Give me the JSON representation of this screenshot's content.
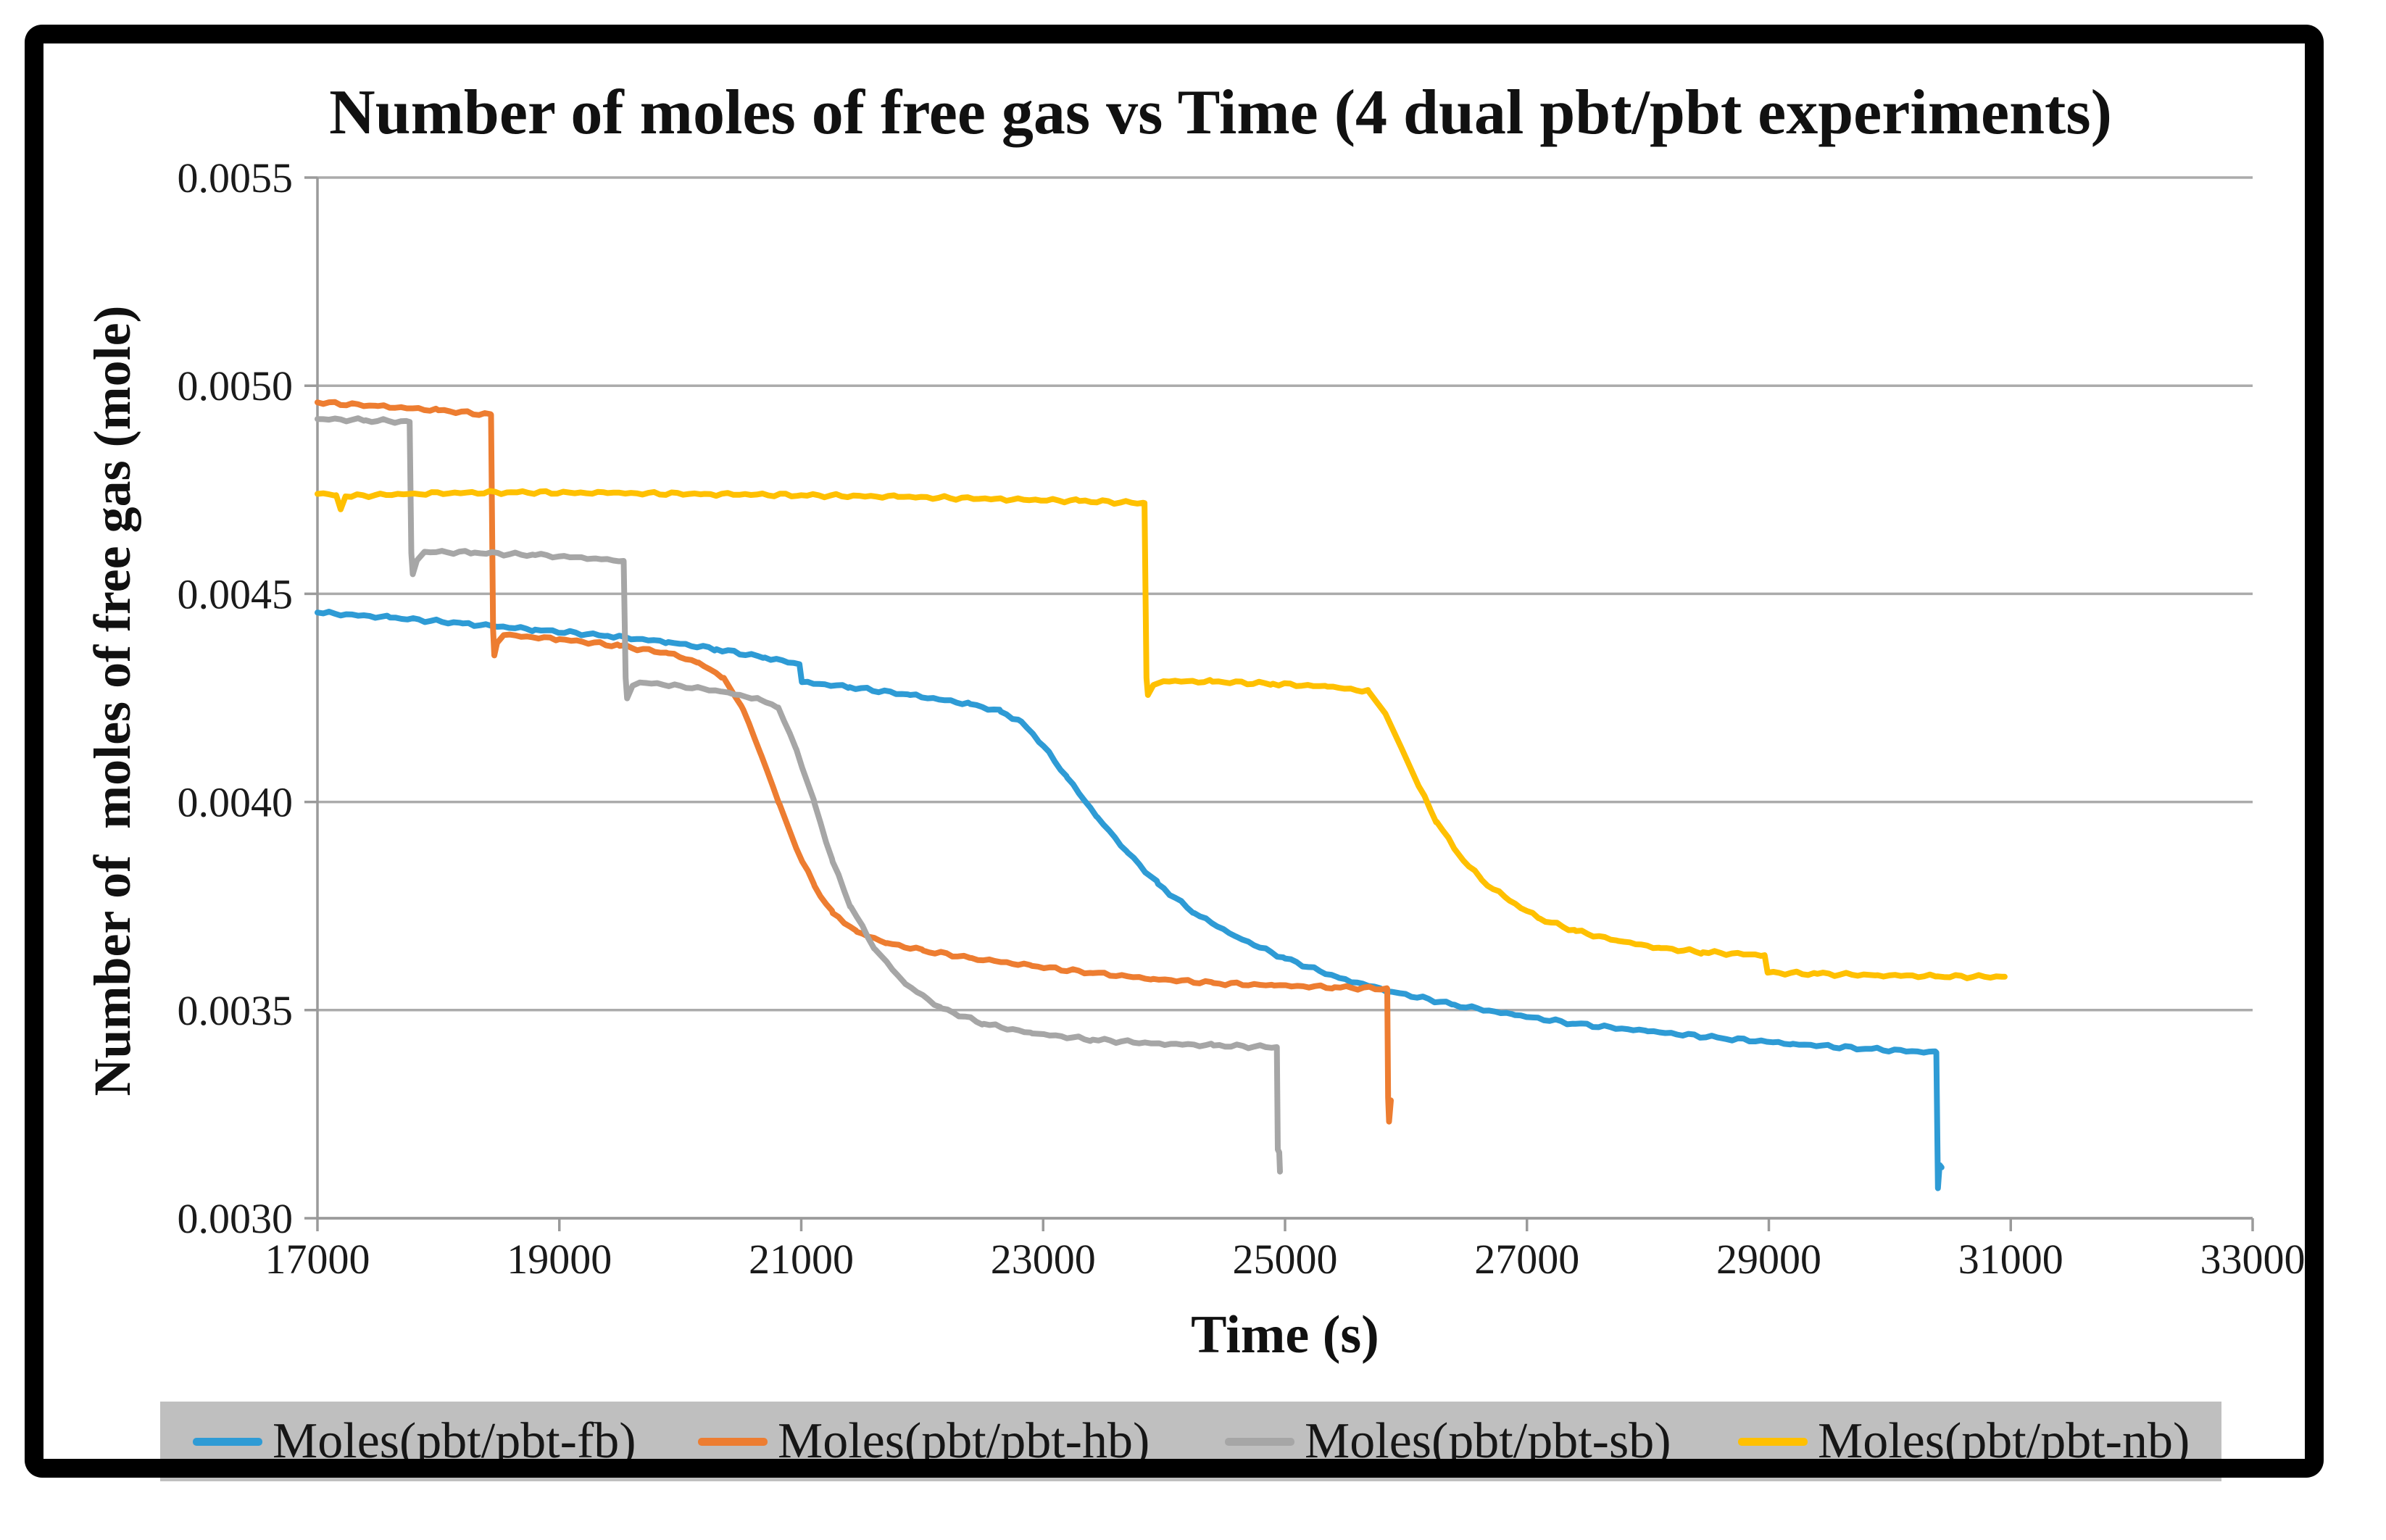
{
  "chart_data": {
    "type": "line",
    "title": "Number of moles of free gas vs Time (4 dual pbt/pbt experiments)",
    "xlabel": "Time (s)",
    "ylabel": "Number of  moles of free gas (mole)",
    "xlim": [
      17000,
      33000
    ],
    "ylim": [
      0.003,
      0.0055
    ],
    "x_ticks": [
      17000,
      19000,
      21000,
      23000,
      25000,
      27000,
      29000,
      31000,
      33000
    ],
    "x_tick_labels": [
      "17000",
      "19000",
      "21000",
      "23000",
      "25000",
      "27000",
      "29000",
      "31000",
      "33000"
    ],
    "y_ticks": [
      0.003,
      0.0035,
      0.004,
      0.0045,
      0.005,
      0.0055
    ],
    "y_tick_labels": [
      "0.0030",
      "0.0035",
      "0.0040",
      "0.0045",
      "0.0050",
      "0.0055"
    ],
    "grid": "horizontal",
    "legend_position": "bottom",
    "colors": {
      "gridline": "#ABABAB",
      "axis": "#9A9A9A",
      "legend_bg": "#BFBFBF",
      "text": "#1A1A1A"
    },
    "series": [
      {
        "name": "Moles(pbt/pbt-fb)",
        "id": "fb",
        "color": "#2E9BD5",
        "points": [
          [
            17000,
            0.004455
          ],
          [
            17600,
            0.004443
          ],
          [
            18200,
            0.004429
          ],
          [
            18800,
            0.004414
          ],
          [
            19400,
            0.004399
          ],
          [
            19900,
            0.004384
          ],
          [
            20300,
            0.004367
          ],
          [
            20700,
            0.004347
          ],
          [
            20985,
            0.004331
          ],
          [
            21005,
            0.004288
          ],
          [
            21400,
            0.004276
          ],
          [
            21900,
            0.004257
          ],
          [
            22400,
            0.004235
          ],
          [
            22650,
            0.004217
          ],
          [
            22820,
            0.004193
          ],
          [
            23000,
            0.004135
          ],
          [
            23200,
            0.004058
          ],
          [
            23450,
            0.003963
          ],
          [
            23700,
            0.003878
          ],
          [
            23950,
            0.003803
          ],
          [
            24250,
            0.003733
          ],
          [
            24600,
            0.003676
          ],
          [
            25000,
            0.003624
          ],
          [
            25450,
            0.003577
          ],
          [
            25900,
            0.003543
          ],
          [
            26400,
            0.003513
          ],
          [
            26900,
            0.003488
          ],
          [
            27400,
            0.003467
          ],
          [
            28000,
            0.003449
          ],
          [
            28600,
            0.003433
          ],
          [
            29200,
            0.003419
          ],
          [
            29800,
            0.003407
          ],
          [
            30385,
            0.003398
          ],
          [
            30398,
            0.003072
          ],
          [
            30412,
            0.003128
          ],
          [
            30428,
            0.003122
          ]
        ]
      },
      {
        "name": "Moles(pbt/pbt-hb)",
        "id": "hb",
        "color": "#ED7D31",
        "points": [
          [
            17000,
            0.00496
          ],
          [
            17500,
            0.004951
          ],
          [
            18000,
            0.004941
          ],
          [
            18435,
            0.00493
          ],
          [
            18452,
            0.004415
          ],
          [
            18462,
            0.004352
          ],
          [
            18485,
            0.004382
          ],
          [
            18540,
            0.004401
          ],
          [
            19000,
            0.004391
          ],
          [
            19500,
            0.004375
          ],
          [
            19900,
            0.004357
          ],
          [
            20150,
            0.004335
          ],
          [
            20360,
            0.004298
          ],
          [
            20520,
            0.004222
          ],
          [
            20670,
            0.004112
          ],
          [
            20820,
            0.003995
          ],
          [
            20960,
            0.003888
          ],
          [
            21110,
            0.003798
          ],
          [
            21260,
            0.003733
          ],
          [
            21460,
            0.003688
          ],
          [
            21710,
            0.003661
          ],
          [
            22010,
            0.003643
          ],
          [
            22410,
            0.003625
          ],
          [
            22910,
            0.003606
          ],
          [
            23410,
            0.003589
          ],
          [
            23910,
            0.003575
          ],
          [
            24410,
            0.003565
          ],
          [
            24910,
            0.003559
          ],
          [
            25410,
            0.003555
          ],
          [
            25845,
            0.003551
          ],
          [
            25852,
            0.00329
          ],
          [
            25860,
            0.003232
          ],
          [
            25875,
            0.003283
          ]
        ]
      },
      {
        "name": "Moles(pbt/pbt-sb)",
        "id": "sb",
        "color": "#A6A6A6",
        "points": [
          [
            17000,
            0.00492
          ],
          [
            17400,
            0.004917
          ],
          [
            17762,
            0.004913
          ],
          [
            17776,
            0.004598
          ],
          [
            17788,
            0.004547
          ],
          [
            17822,
            0.00458
          ],
          [
            17885,
            0.004601
          ],
          [
            18300,
            0.004599
          ],
          [
            18800,
            0.004593
          ],
          [
            19300,
            0.004585
          ],
          [
            19532,
            0.004579
          ],
          [
            19548,
            0.004298
          ],
          [
            19560,
            0.004249
          ],
          [
            19605,
            0.004279
          ],
          [
            19665,
            0.004287
          ],
          [
            20000,
            0.004279
          ],
          [
            20350,
            0.004265
          ],
          [
            20660,
            0.004246
          ],
          [
            20810,
            0.004227
          ],
          [
            20960,
            0.004126
          ],
          [
            21110,
            0.003996
          ],
          [
            21260,
            0.003856
          ],
          [
            21410,
            0.003748
          ],
          [
            21610,
            0.003646
          ],
          [
            21860,
            0.003563
          ],
          [
            22160,
            0.003504
          ],
          [
            22510,
            0.003467
          ],
          [
            22910,
            0.003444
          ],
          [
            23410,
            0.003429
          ],
          [
            23910,
            0.00342
          ],
          [
            24410,
            0.003415
          ],
          [
            24932,
            0.003411
          ],
          [
            24940,
            0.003165
          ],
          [
            24952,
            0.003158
          ],
          [
            24958,
            0.003112
          ]
        ]
      },
      {
        "name": "Moles(pbt/pbt-nb)",
        "id": "nb",
        "color": "#FFC000",
        "points": [
          [
            17000,
            0.00474
          ],
          [
            17155,
            0.004737
          ],
          [
            17192,
            0.004703
          ],
          [
            17232,
            0.004734
          ],
          [
            17800,
            0.004741
          ],
          [
            18600,
            0.004744
          ],
          [
            19400,
            0.004742
          ],
          [
            20200,
            0.00474
          ],
          [
            21000,
            0.004737
          ],
          [
            21800,
            0.004733
          ],
          [
            22600,
            0.004728
          ],
          [
            23300,
            0.004723
          ],
          [
            23838,
            0.004718
          ],
          [
            23854,
            0.004298
          ],
          [
            23866,
            0.004257
          ],
          [
            23912,
            0.004281
          ],
          [
            23995,
            0.00429
          ],
          [
            24400,
            0.004289
          ],
          [
            24900,
            0.004284
          ],
          [
            25350,
            0.004277
          ],
          [
            25690,
            0.004266
          ],
          [
            25830,
            0.004212
          ],
          [
            25965,
            0.004128
          ],
          [
            26105,
            0.004038
          ],
          [
            26255,
            0.003952
          ],
          [
            26425,
            0.003878
          ],
          [
            26625,
            0.003813
          ],
          [
            26855,
            0.003763
          ],
          [
            27105,
            0.00372
          ],
          [
            27405,
            0.00369
          ],
          [
            27755,
            0.003666
          ],
          [
            28105,
            0.003649
          ],
          [
            28455,
            0.003639
          ],
          [
            28965,
            0.003632
          ],
          [
            28990,
            0.00359
          ],
          [
            29400,
            0.003587
          ],
          [
            29900,
            0.003584
          ],
          [
            30400,
            0.003581
          ],
          [
            30950,
            0.00358
          ]
        ]
      }
    ]
  }
}
